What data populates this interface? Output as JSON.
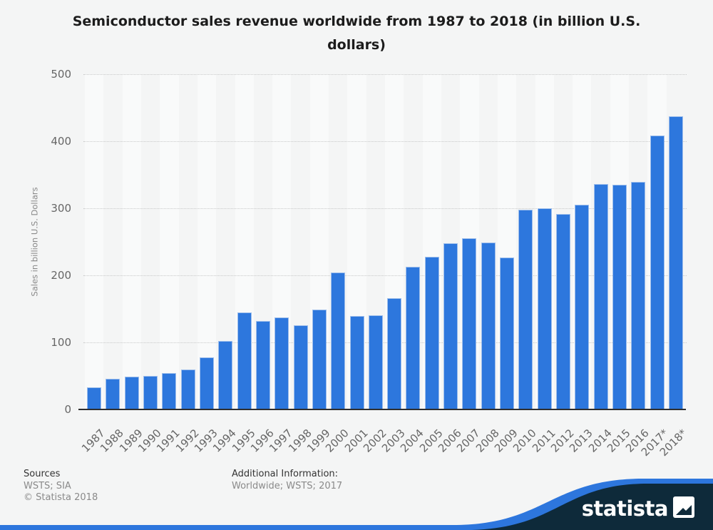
{
  "header": {
    "title_line1": "Semiconductor sales revenue worldwide from 1987 to 2018 (in billion U.S.",
    "title_line2": "dollars)"
  },
  "chart_data": {
    "type": "bar",
    "title": "Semiconductor sales revenue worldwide from 1987 to 2018 (in billion U.S. dollars)",
    "xlabel": "",
    "ylabel": "Sales in billion U.S. Dollars",
    "ylim": [
      0,
      500
    ],
    "yticks": [
      0,
      100,
      200,
      300,
      400,
      500
    ],
    "grid": "horizontal-dotted",
    "legend_position": "none",
    "bar_color": "#2d77dd",
    "categories": [
      "1987",
      "1988",
      "1989",
      "1990",
      "1991",
      "1992",
      "1993",
      "1994",
      "1995",
      "1996",
      "1997",
      "1998",
      "1999",
      "2000",
      "2001",
      "2002",
      "2003",
      "2004",
      "2005",
      "2006",
      "2007",
      "2008",
      "2009",
      "2010",
      "2011",
      "2012",
      "2013",
      "2014",
      "2015",
      "2016",
      "2017*",
      "2018*"
    ],
    "values": [
      33,
      45.4,
      48.8,
      50.5,
      54.6,
      59.9,
      77.3,
      101.9,
      144.4,
      132,
      137.2,
      125.6,
      149.4,
      204.4,
      139,
      140.7,
      166.4,
      213,
      227.5,
      247.7,
      255.6,
      248.6,
      226.3,
      298.3,
      299.5,
      291.6,
      305.6,
      335.8,
      335.2,
      338.9,
      408.7,
      437.3
    ]
  },
  "footer": {
    "sources_label": "Sources",
    "sources_value": "WSTS; SIA",
    "copyright": "© Statista 2018",
    "additional_label": "Additional Information:",
    "additional_value": "Worldwide; WSTS; 2017"
  },
  "branding": {
    "logo_text": "statista",
    "navy_color": "#0e2a3a",
    "blue_color": "#2d76dd"
  }
}
